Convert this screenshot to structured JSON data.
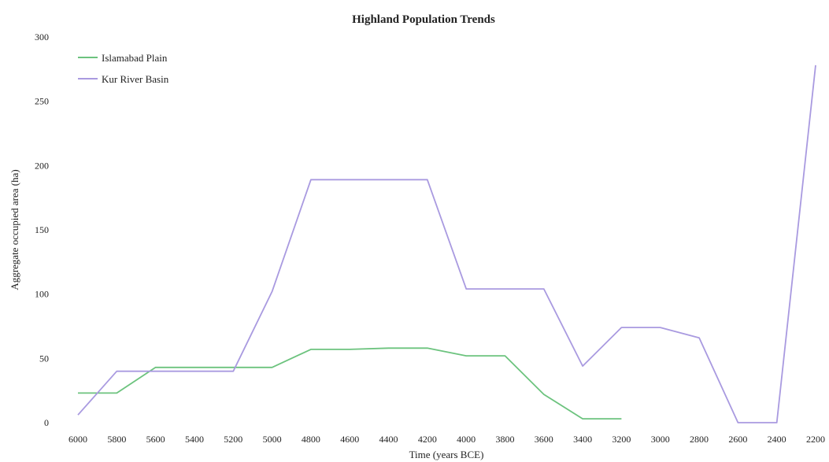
{
  "chart_data": {
    "type": "line",
    "title": "Highland Population Trends",
    "xlabel": "Time (years BCE)",
    "ylabel": "Aggregate occupied area (ha)",
    "categories": [
      "6000",
      "5800",
      "5600",
      "5400",
      "5200",
      "5000",
      "4800",
      "4600",
      "4400",
      "4200",
      "4000",
      "3800",
      "3600",
      "3400",
      "3200",
      "3000",
      "2800",
      "2600",
      "2400",
      "2200"
    ],
    "ylim": [
      0,
      300
    ],
    "yticks": [
      "0",
      "50",
      "100",
      "150",
      "200",
      "250",
      "300"
    ],
    "grid": false,
    "legend_position": "top-left",
    "series": [
      {
        "name": "Islamabad Plain",
        "color": "#6cc37e",
        "values": [
          23,
          23,
          43,
          43,
          43,
          43,
          57,
          57,
          58,
          58,
          52,
          52,
          22,
          3,
          3,
          null,
          null,
          null,
          null,
          null
        ]
      },
      {
        "name": "Kur River Basin",
        "color": "#a99ae0",
        "values": [
          6,
          40,
          40,
          40,
          40,
          102,
          189,
          189,
          189,
          189,
          104,
          104,
          104,
          44,
          74,
          74,
          66,
          0,
          0,
          278
        ]
      }
    ]
  }
}
